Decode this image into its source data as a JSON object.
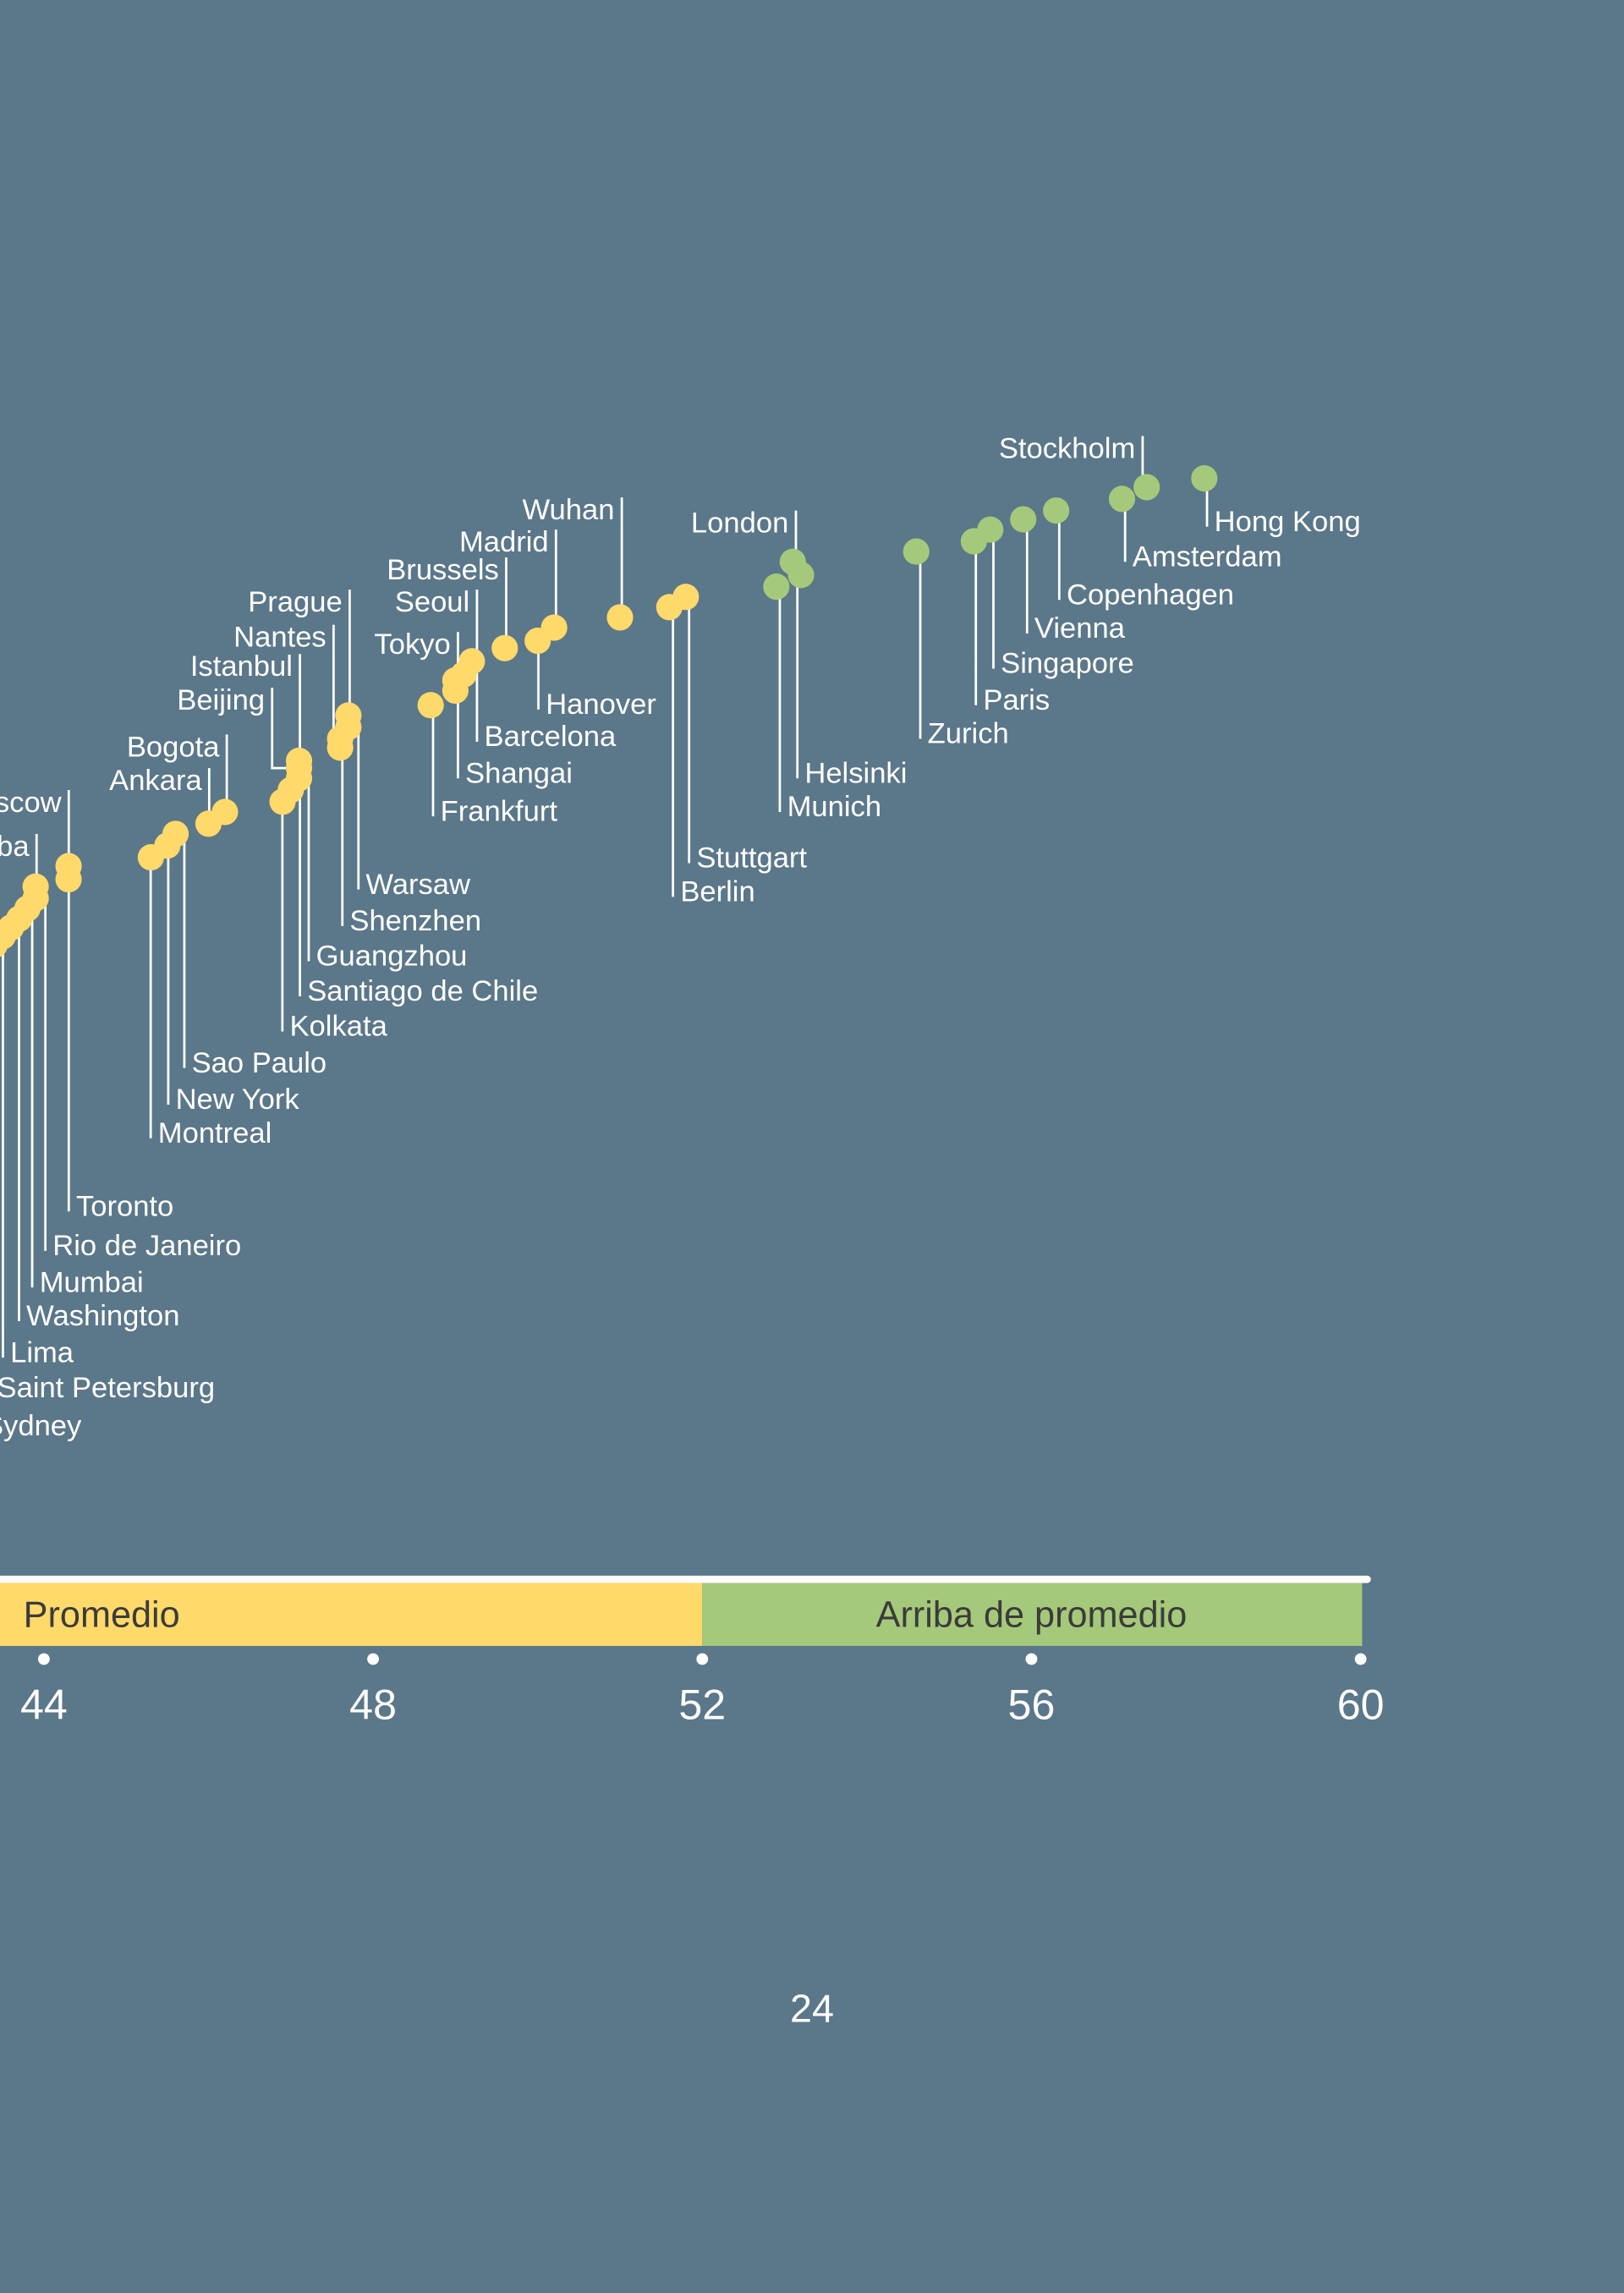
{
  "page_number": "24",
  "colors": {
    "background": "#5b778a",
    "promedio": "#ffd96a",
    "arriba_de_promedio": "#a5c97a",
    "line": "#ffffff",
    "band_text": "#3b3b3b"
  },
  "chart_data": {
    "type": "scatter",
    "title": "",
    "xlabel": "",
    "ylabel": "",
    "xlim": [
      43.4,
      60
    ],
    "x_ticks": [
      "44",
      "48",
      "52",
      "56",
      "60"
    ],
    "grid": false,
    "bands": [
      {
        "label": "Promedio",
        "from": 43.4,
        "to": 52,
        "color": "#ffd96a"
      },
      {
        "label": "Arriba de promedio",
        "from": 52,
        "to": 60,
        "color": "#a5c97a"
      }
    ],
    "points": [
      {
        "label": "Hong Kong",
        "value": 58.1,
        "band": "Arriba de promedio"
      },
      {
        "label": "Stockholm",
        "value": 57.4,
        "band": "Arriba de promedio"
      },
      {
        "label": "Amsterdam",
        "value": 57.1,
        "band": "Arriba de promedio"
      },
      {
        "label": "Copenhagen",
        "value": 56.3,
        "band": "Arriba de promedio"
      },
      {
        "label": "Vienna",
        "value": 55.9,
        "band": "Arriba de promedio"
      },
      {
        "label": "Singapore",
        "value": 55.5,
        "band": "Arriba de promedio"
      },
      {
        "label": "Paris",
        "value": 55.3,
        "band": "Arriba de promedio"
      },
      {
        "label": "Zurich",
        "value": 54.6,
        "band": "Arriba de promedio"
      },
      {
        "label": "London",
        "value": 53.1,
        "band": "Arriba de promedio"
      },
      {
        "label": "Helsinki",
        "value": 53.2,
        "band": "Arriba de promedio"
      },
      {
        "label": "Munich",
        "value": 52.9,
        "band": "Arriba de promedio"
      },
      {
        "label": "Stuttgart",
        "value": 51.8,
        "band": "Promedio"
      },
      {
        "label": "Berlin",
        "value": 51.6,
        "band": "Promedio"
      },
      {
        "label": "Wuhan",
        "value": 51.0,
        "band": "Promedio"
      },
      {
        "label": "Madrid",
        "value": 50.2,
        "band": "Promedio"
      },
      {
        "label": "Hanover",
        "value": 50.0,
        "band": "Promedio"
      },
      {
        "label": "Brussels",
        "value": 49.6,
        "band": "Promedio"
      },
      {
        "label": "Seoul",
        "value": 49.2,
        "band": "Promedio"
      },
      {
        "label": "Barcelona",
        "value": 49.1,
        "band": "Promedio"
      },
      {
        "label": "Tokyo",
        "value": 49.0,
        "band": "Promedio"
      },
      {
        "label": "Shangai",
        "value": 49.0,
        "band": "Promedio"
      },
      {
        "label": "Frankfurt",
        "value": 48.7,
        "band": "Promedio"
      },
      {
        "label": "Prague",
        "value": 47.7,
        "band": "Promedio"
      },
      {
        "label": "Warsaw",
        "value": 47.7,
        "band": "Promedio"
      },
      {
        "label": "Nantes",
        "value": 47.6,
        "band": "Promedio"
      },
      {
        "label": "Shenzhen",
        "value": 47.6,
        "band": "Promedio"
      },
      {
        "label": "Istanbul",
        "value": 47.1,
        "band": "Promedio"
      },
      {
        "label": "Beijing",
        "value": 47.1,
        "band": "Promedio"
      },
      {
        "label": "Guangzhou",
        "value": 47.1,
        "band": "Promedio"
      },
      {
        "label": "Santiago de Chile",
        "value": 47.0,
        "band": "Promedio"
      },
      {
        "label": "Kolkata",
        "value": 46.9,
        "band": "Promedio"
      },
      {
        "label": "Bogota",
        "value": 46.2,
        "band": "Promedio"
      },
      {
        "label": "Ankara",
        "value": 46.0,
        "band": "Promedio"
      },
      {
        "label": "Sao Paulo",
        "value": 45.6,
        "band": "Promedio"
      },
      {
        "label": "New York",
        "value": 45.5,
        "band": "Promedio"
      },
      {
        "label": "Montreal",
        "value": 45.3,
        "band": "Promedio"
      },
      {
        "label": "Moscow",
        "value": 44.3,
        "band": "Promedio"
      },
      {
        "label": "Toronto",
        "value": 44.3,
        "band": "Promedio"
      },
      {
        "label": "ba",
        "value": 43.9,
        "band": "Promedio"
      },
      {
        "label": "Rio de Janeiro",
        "value": 43.9,
        "band": "Promedio"
      },
      {
        "label": "Mumbai",
        "value": 43.8,
        "band": "Promedio"
      },
      {
        "label": "Washington",
        "value": 43.7,
        "band": "Promedio"
      },
      {
        "label": "Lima",
        "value": 43.6,
        "band": "Promedio"
      },
      {
        "label": "Saint Petersburg",
        "value": 43.5,
        "band": "Promedio"
      },
      {
        "label": "Sydney",
        "value": 43.4,
        "band": "Promedio"
      }
    ]
  }
}
